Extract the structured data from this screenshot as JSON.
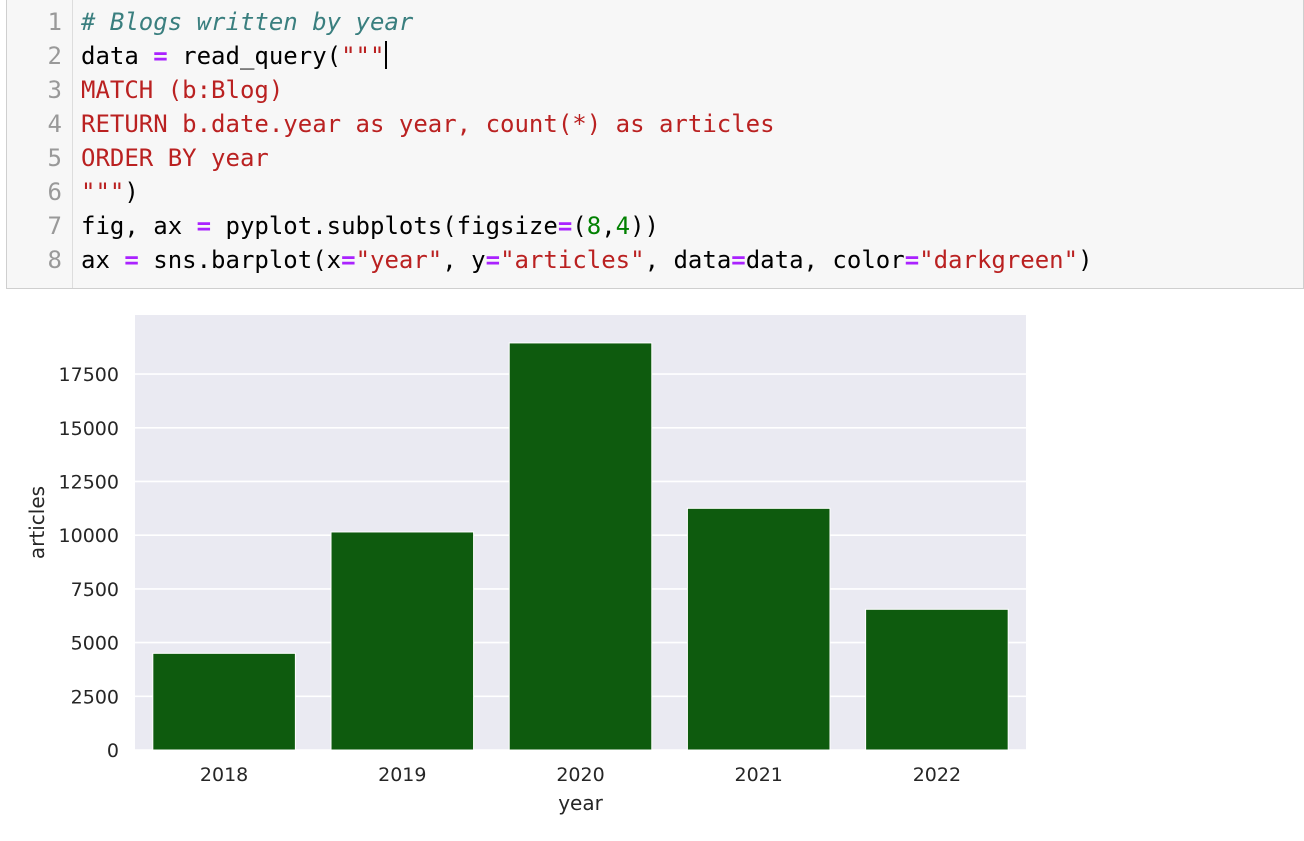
{
  "code_cell": {
    "line_numbers": [
      "1",
      "2",
      "3",
      "4",
      "5",
      "6",
      "7",
      "8"
    ],
    "lines": [
      [
        {
          "t": "# Blogs written by year",
          "k": "comment"
        }
      ],
      [
        {
          "t": "data ",
          "k": "plain"
        },
        {
          "t": "=",
          "k": "op"
        },
        {
          "t": " read_query(",
          "k": "plain"
        },
        {
          "t": "\"\"\"",
          "k": "str"
        }
      ],
      [
        {
          "t": "MATCH (b:Blog)",
          "k": "str"
        }
      ],
      [
        {
          "t": "RETURN b.date.year as year, count(*) as articles",
          "k": "str"
        }
      ],
      [
        {
          "t": "ORDER BY year",
          "k": "str"
        }
      ],
      [
        {
          "t": "\"\"\"",
          "k": "str"
        },
        {
          "t": ")",
          "k": "plain"
        }
      ],
      [
        {
          "t": "fig, ax ",
          "k": "plain"
        },
        {
          "t": "=",
          "k": "op"
        },
        {
          "t": " pyplot.subplots(figsize",
          "k": "plain"
        },
        {
          "t": "=",
          "k": "op"
        },
        {
          "t": "(",
          "k": "plain"
        },
        {
          "t": "8",
          "k": "num"
        },
        {
          "t": ",",
          "k": "plain"
        },
        {
          "t": "4",
          "k": "num"
        },
        {
          "t": "))",
          "k": "plain"
        }
      ],
      [
        {
          "t": "ax ",
          "k": "plain"
        },
        {
          "t": "=",
          "k": "op"
        },
        {
          "t": " sns.barplot(x",
          "k": "plain"
        },
        {
          "t": "=",
          "k": "op"
        },
        {
          "t": "\"year\"",
          "k": "str"
        },
        {
          "t": ", y",
          "k": "plain"
        },
        {
          "t": "=",
          "k": "op"
        },
        {
          "t": "\"articles\"",
          "k": "str"
        },
        {
          "t": ", data",
          "k": "plain"
        },
        {
          "t": "=",
          "k": "op"
        },
        {
          "t": "data, color",
          "k": "plain"
        },
        {
          "t": "=",
          "k": "op"
        },
        {
          "t": "\"darkgreen\"",
          "k": "str"
        },
        {
          "t": ")",
          "k": "plain"
        }
      ]
    ],
    "colors": {
      "comment": "#3a7f7f",
      "string": "#ba2121",
      "operator": "#aa22ff",
      "number": "#008000"
    }
  },
  "chart_data": {
    "type": "bar",
    "categories": [
      "2018",
      "2019",
      "2020",
      "2021",
      "2022"
    ],
    "values": [
      4500,
      10150,
      18950,
      11250,
      6550
    ],
    "xlabel": "year",
    "ylabel": "articles",
    "ylim": [
      0,
      20250
    ],
    "yticks": [
      0,
      2500,
      5000,
      7500,
      10000,
      12500,
      15000,
      17500
    ],
    "grid": true,
    "bar_color": "#0e5b0e",
    "background_color": "#eaeaf2",
    "grid_color": "#ffffff"
  }
}
